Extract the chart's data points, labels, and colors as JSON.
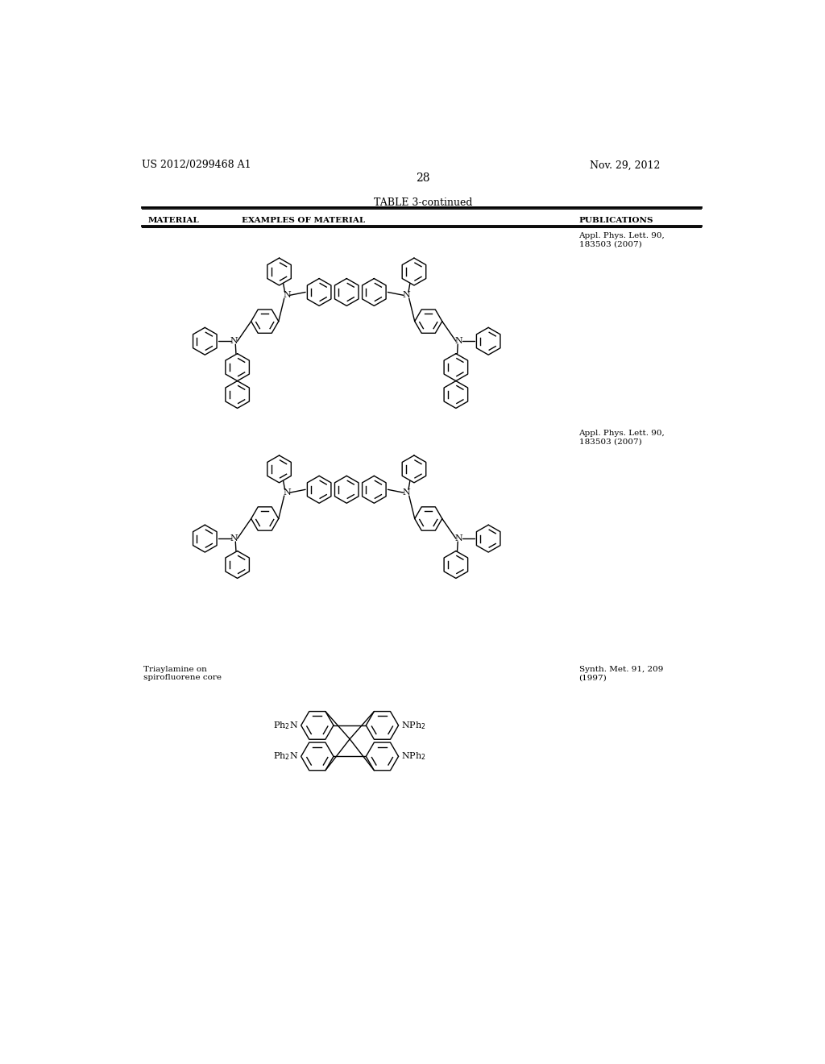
{
  "page_number": "28",
  "patent_number": "US 2012/0299468 A1",
  "patent_date": "Nov. 29, 2012",
  "table_title": "TABLE 3-continued",
  "col1": "MATERIAL",
  "col2": "EXAMPLES OF MATERIAL",
  "col3": "PUBLICATIONS",
  "pub1": "Appl. Phys. Lett. 90,\n183503 (2007)",
  "pub2": "Appl. Phys. Lett. 90,\n183503 (2007)",
  "pub3_left": "Triaylamine on\nspirofluorene core",
  "pub3_right": "Synth. Met. 91, 209\n(1997)",
  "bg_color": "#ffffff",
  "text_color": "#000000",
  "line_color": "#000000"
}
